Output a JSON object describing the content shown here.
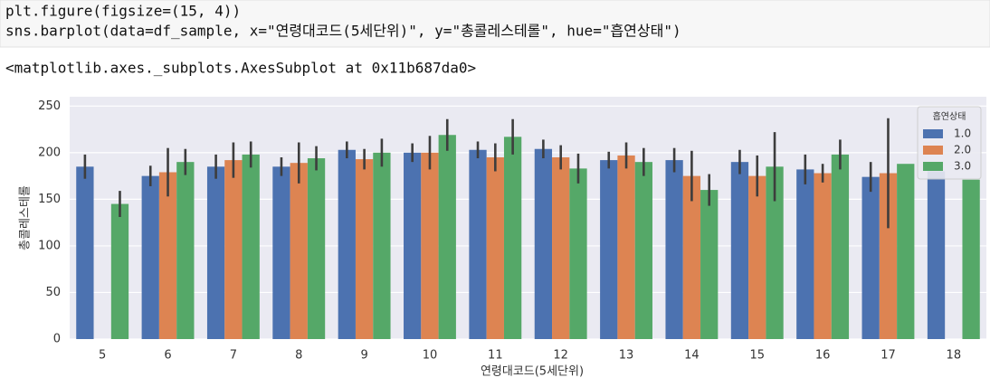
{
  "code": {
    "lines": [
      "plt.figure(figsize=(15, 4))",
      "sns.barplot(data=df_sample, x=\"연령대코드(5세단위)\", y=\"총콜레스테롤\", hue=\"흡연상태\")"
    ]
  },
  "output_text": "<matplotlib.axes._subplots.AxesSubplot at 0x11b687da0>",
  "chart_data": {
    "type": "bar",
    "x_label": "연령대코드(5세단위)",
    "y_label": "총콜레스테롤",
    "categories": [
      "5",
      "6",
      "7",
      "8",
      "9",
      "10",
      "11",
      "12",
      "13",
      "14",
      "15",
      "16",
      "17",
      "18"
    ],
    "legend_title": "흡연상태",
    "legend_position": "upper-right",
    "series": [
      {
        "name": "1.0",
        "color": "#4c72b0",
        "values": [
          185,
          175,
          185,
          185,
          203,
          200,
          203,
          204,
          192,
          192,
          190,
          182,
          174,
          180
        ],
        "errors": [
          13,
          11,
          13,
          10,
          9,
          10,
          9,
          10,
          9,
          13,
          13,
          16,
          16,
          null
        ]
      },
      {
        "name": "2.0",
        "color": "#dd8452",
        "values": [
          null,
          179,
          192,
          189,
          193,
          200,
          195,
          195,
          197,
          175,
          175,
          178,
          178,
          null
        ],
        "errors": [
          null,
          26,
          19,
          22,
          11,
          18,
          15,
          13,
          14,
          27,
          22,
          10,
          59,
          null
        ]
      },
      {
        "name": "3.0",
        "color": "#55a868",
        "values": [
          145,
          190,
          198,
          194,
          200,
          219,
          217,
          183,
          190,
          160,
          185,
          198,
          188,
          171
        ],
        "errors": [
          14,
          14,
          14,
          13,
          15,
          17,
          19,
          16,
          15,
          17,
          37,
          16,
          null,
          null
        ]
      }
    ],
    "ylim": [
      0,
      260
    ],
    "yticks": [
      0,
      50,
      100,
      150,
      200,
      250
    ],
    "grid": true
  }
}
